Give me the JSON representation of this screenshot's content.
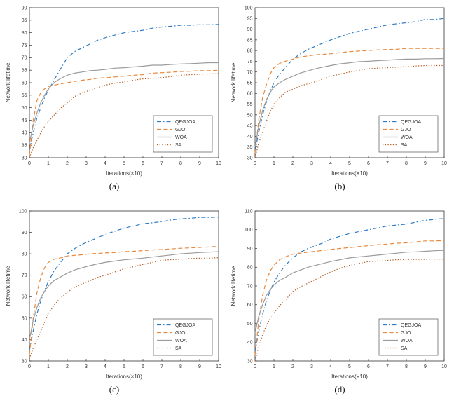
{
  "page": {
    "background": "#ffffff"
  },
  "legend_labels": [
    "QEGJOA",
    "GJO",
    "WOA",
    "SA"
  ],
  "colors": {
    "qegjoa": "#2e7bc4",
    "gjo": "#e8883c",
    "woa": "#9b9b9b",
    "sa": "#b35a1f"
  },
  "chart_data": [
    {
      "type": "line",
      "caption": "(a)",
      "xlabel": "Iterations(×10)",
      "ylabel": "Network lifetime",
      "xlim": [
        0,
        10
      ],
      "ylim": [
        30,
        90
      ],
      "xticks": [
        0,
        1,
        2,
        3,
        4,
        5,
        6,
        7,
        8,
        9,
        10
      ],
      "yticks": [
        30,
        35,
        40,
        45,
        50,
        55,
        60,
        65,
        70,
        75,
        80,
        85,
        90
      ],
      "grid": false,
      "legend_position": "lower right",
      "x": [
        0,
        0.2,
        0.4,
        0.6,
        0.8,
        1.0,
        1.3,
        1.6,
        2.0,
        2.4,
        2.8,
        3.2,
        3.6,
        4.0,
        4.5,
        5.0,
        5.5,
        6.0,
        6.5,
        7.0,
        7.5,
        8.0,
        8.5,
        9.0,
        9.5,
        10
      ],
      "series": [
        {
          "name": "QEGJOA",
          "color": "#2e7bc4",
          "style": "dashdot",
          "values": [
            33,
            40,
            46,
            50,
            54,
            57,
            61,
            65,
            70,
            72.5,
            74,
            75.5,
            77,
            78,
            79,
            80,
            80.5,
            81,
            81.8,
            82.3,
            82.6,
            83,
            83,
            83.2,
            83.2,
            83.3
          ]
        },
        {
          "name": "GJO",
          "color": "#e8883c",
          "style": "dashed",
          "values": [
            31,
            45,
            53,
            56,
            57.5,
            58.5,
            59,
            59.5,
            60,
            60.5,
            61,
            61.3,
            61.8,
            62,
            62.3,
            62.6,
            63,
            63.2,
            63.8,
            64,
            64.2,
            64.5,
            64.6,
            64.8,
            64.8,
            65
          ]
        },
        {
          "name": "WOA",
          "color": "#9b9b9b",
          "style": "solid",
          "values": [
            36,
            43,
            48,
            52,
            55,
            57.5,
            60,
            61.5,
            63,
            63.8,
            64.3,
            64.8,
            65,
            65.3,
            65.8,
            66,
            66.3,
            66.6,
            67,
            67,
            67.3,
            67.5,
            67.6,
            67.8,
            68,
            68
          ]
        },
        {
          "name": "SA",
          "color": "#b35a1f",
          "style": "dotted",
          "values": [
            30,
            34,
            37,
            40,
            42.5,
            44.5,
            47,
            49.5,
            52,
            54.5,
            56,
            57,
            58,
            59,
            59.8,
            60.3,
            61,
            61.5,
            61.8,
            62,
            62.5,
            63,
            63.2,
            63.4,
            63.5,
            63.6
          ]
        }
      ]
    },
    {
      "type": "line",
      "caption": "(b)",
      "xlabel": "Iterations(×10)",
      "ylabel": "Network lifetime",
      "xlim": [
        0,
        10
      ],
      "ylim": [
        30,
        100
      ],
      "xticks": [
        0,
        1,
        2,
        3,
        4,
        5,
        6,
        7,
        8,
        9,
        10
      ],
      "yticks": [
        30,
        35,
        40,
        45,
        50,
        55,
        60,
        65,
        70,
        75,
        80,
        85,
        90,
        95,
        100
      ],
      "grid": false,
      "legend_position": "lower right",
      "x": [
        0,
        0.2,
        0.4,
        0.6,
        0.8,
        1.0,
        1.3,
        1.6,
        2.0,
        2.4,
        2.8,
        3.2,
        3.6,
        4.0,
        4.5,
        5.0,
        5.5,
        6.0,
        6.5,
        7.0,
        7.5,
        8.0,
        8.5,
        9.0,
        9.5,
        10
      ],
      "series": [
        {
          "name": "QEGJOA",
          "color": "#2e7bc4",
          "style": "dashdot",
          "values": [
            33,
            42,
            50,
            56,
            61,
            65,
            69,
            72,
            76,
            78.5,
            80.5,
            82,
            83.5,
            85,
            86.5,
            88,
            89,
            90,
            91,
            92,
            92.5,
            93,
            93.5,
            94.5,
            94.5,
            95
          ]
        },
        {
          "name": "GJO",
          "color": "#e8883c",
          "style": "dashed",
          "values": [
            32,
            48,
            58,
            64,
            69,
            72,
            74,
            75,
            76,
            77,
            77.5,
            78,
            78.2,
            78.5,
            79,
            79.5,
            79.8,
            80,
            80.3,
            80.5,
            80.6,
            81,
            81,
            81,
            81,
            81
          ]
        },
        {
          "name": "WOA",
          "color": "#9b9b9b",
          "style": "solid",
          "values": [
            35,
            45,
            52,
            57,
            60.5,
            63,
            65,
            66.5,
            68,
            69.5,
            70.5,
            71.5,
            72.3,
            73,
            73.8,
            74.3,
            74.8,
            75,
            75.3,
            75.5,
            75.8,
            76,
            76,
            76.2,
            76.2,
            76.3
          ]
        },
        {
          "name": "SA",
          "color": "#b35a1f",
          "style": "dotted",
          "values": [
            30,
            37,
            42,
            47,
            51.5,
            55,
            58,
            60.5,
            62,
            63.5,
            64.5,
            65.5,
            66.8,
            68,
            69,
            70,
            70.8,
            71.5,
            71.8,
            72,
            72.3,
            72.5,
            72.8,
            73,
            73,
            73
          ]
        }
      ]
    },
    {
      "type": "line",
      "caption": "(c)",
      "xlabel": "Iterations(×10)",
      "ylabel": "Network lifetime",
      "xlim": [
        0,
        10
      ],
      "ylim": [
        30,
        100
      ],
      "xticks": [
        0,
        1,
        2,
        3,
        4,
        5,
        6,
        7,
        8,
        9,
        10
      ],
      "yticks": [
        30,
        40,
        50,
        60,
        70,
        80,
        90,
        100
      ],
      "grid": false,
      "legend_position": "lower right",
      "x": [
        0,
        0.2,
        0.4,
        0.6,
        0.8,
        1.0,
        1.3,
        1.6,
        2.0,
        2.4,
        2.8,
        3.2,
        3.6,
        4.0,
        4.5,
        5.0,
        5.5,
        6.0,
        6.5,
        7.0,
        7.5,
        8.0,
        8.5,
        9.0,
        9.5,
        10
      ],
      "series": [
        {
          "name": "QEGJOA",
          "color": "#2e7bc4",
          "style": "dashdot",
          "values": [
            35,
            44,
            52,
            58,
            63,
            67,
            72,
            75.5,
            80,
            82.5,
            84.5,
            86,
            87.5,
            89,
            90.5,
            92,
            93,
            94,
            94.5,
            95,
            95.8,
            96.3,
            96.6,
            97,
            97,
            97.2
          ]
        },
        {
          "name": "GJO",
          "color": "#e8883c",
          "style": "dashed",
          "values": [
            33,
            50,
            62,
            69,
            73.5,
            76,
            77.5,
            78,
            79,
            79.3,
            79.6,
            80,
            80.2,
            80.4,
            80.6,
            81,
            81.2,
            81.5,
            81.8,
            82,
            82.3,
            82.6,
            82.8,
            83,
            83.2,
            83.5
          ]
        },
        {
          "name": "WOA",
          "color": "#9b9b9b",
          "style": "solid",
          "values": [
            40,
            49,
            55,
            59.5,
            62.5,
            65,
            67.5,
            69,
            71,
            72.5,
            73.5,
            74.5,
            75.3,
            76,
            76.6,
            77.2,
            77.6,
            78,
            78.5,
            79,
            79.5,
            80,
            80.3,
            80.6,
            80.8,
            81
          ]
        },
        {
          "name": "SA",
          "color": "#b35a1f",
          "style": "dotted",
          "values": [
            31,
            36,
            40,
            44,
            48,
            52,
            56,
            59,
            62,
            64.5,
            66,
            67.5,
            69,
            70,
            71.5,
            73,
            74,
            75,
            76,
            77,
            77.3,
            77.5,
            77.8,
            78,
            78,
            78.2
          ]
        }
      ]
    },
    {
      "type": "line",
      "caption": "(d)",
      "xlabel": "Iterations(×10)",
      "ylabel": "Network lifetime",
      "xlim": [
        0,
        10
      ],
      "ylim": [
        30,
        110
      ],
      "xticks": [
        0,
        1,
        2,
        3,
        4,
        5,
        6,
        7,
        8,
        9,
        10
      ],
      "yticks": [
        30,
        40,
        50,
        60,
        70,
        80,
        90,
        100,
        110
      ],
      "grid": false,
      "legend_position": "lower right",
      "x": [
        0,
        0.2,
        0.4,
        0.6,
        0.8,
        1.0,
        1.3,
        1.6,
        2.0,
        2.4,
        2.8,
        3.2,
        3.6,
        4.0,
        4.5,
        5.0,
        5.5,
        6.0,
        6.5,
        7.0,
        7.5,
        8.0,
        8.5,
        9.0,
        9.5,
        10
      ],
      "series": [
        {
          "name": "QEGJOA",
          "color": "#2e7bc4",
          "style": "dashdot",
          "values": [
            35,
            46,
            55,
            62,
            67.5,
            72,
            77,
            81,
            85,
            88,
            90,
            91.5,
            93,
            95,
            96.5,
            98,
            99,
            100,
            101,
            102,
            102.5,
            103,
            104,
            105,
            105.5,
            106
          ]
        },
        {
          "name": "GJO",
          "color": "#e8883c",
          "style": "dashed",
          "values": [
            33,
            52,
            65,
            73,
            78,
            81,
            84,
            85.5,
            87,
            87.5,
            88,
            88.5,
            89,
            89.5,
            90,
            90.5,
            91,
            91.5,
            92,
            92.3,
            92.8,
            93,
            93.5,
            94,
            94,
            94.2
          ]
        },
        {
          "name": "WOA",
          "color": "#9b9b9b",
          "style": "solid",
          "values": [
            45,
            54,
            60,
            65,
            68,
            70.5,
            73,
            74.5,
            77,
            78.5,
            80,
            81,
            82,
            83,
            84,
            85,
            85.5,
            86,
            86.5,
            87,
            87.5,
            88,
            88.2,
            88.5,
            88.8,
            89
          ]
        },
        {
          "name": "SA",
          "color": "#b35a1f",
          "style": "dotted",
          "values": [
            30,
            38,
            44,
            49,
            52.5,
            55.5,
            59.5,
            62.5,
            67,
            69.5,
            71.5,
            73.5,
            75.5,
            77.5,
            79.5,
            81,
            82,
            83,
            83.3,
            83.6,
            84,
            84,
            84.2,
            84.2,
            84.3,
            84.3
          ]
        }
      ]
    }
  ]
}
